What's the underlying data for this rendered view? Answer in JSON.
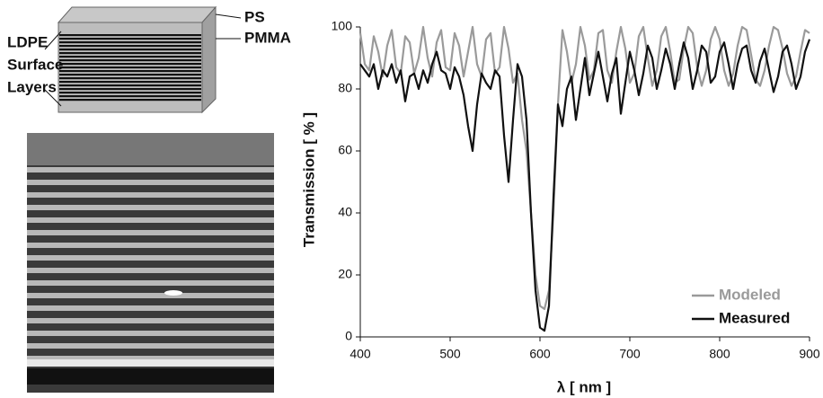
{
  "diagram": {
    "ps_label": "PS",
    "pmma_label": "PMMA",
    "surface_label": [
      "LDPE",
      "Surface",
      "Layers"
    ]
  },
  "chart_data": {
    "type": "line",
    "x_label": "λ [ nm ]",
    "y_label": "Transmission [ % ]",
    "xlim": [
      400,
      900
    ],
    "xticks": [
      400,
      500,
      600,
      700,
      800,
      900
    ],
    "ylim": [
      0,
      100
    ],
    "yticks": [
      0,
      20,
      40,
      60,
      80,
      100
    ],
    "grid": false,
    "legend": "bottom-right",
    "x": [
      400,
      405,
      410,
      415,
      420,
      425,
      430,
      435,
      440,
      445,
      450,
      455,
      460,
      465,
      470,
      475,
      480,
      485,
      490,
      495,
      500,
      505,
      510,
      515,
      520,
      525,
      530,
      535,
      540,
      545,
      550,
      555,
      560,
      565,
      570,
      575,
      580,
      585,
      590,
      595,
      600,
      605,
      610,
      615,
      620,
      625,
      630,
      635,
      640,
      645,
      650,
      655,
      660,
      665,
      670,
      675,
      680,
      685,
      690,
      695,
      700,
      705,
      710,
      715,
      720,
      725,
      730,
      735,
      740,
      745,
      750,
      755,
      760,
      765,
      770,
      775,
      780,
      785,
      790,
      795,
      800,
      805,
      810,
      815,
      820,
      825,
      830,
      835,
      840,
      845,
      850,
      855,
      860,
      865,
      870,
      875,
      880,
      885,
      890,
      895,
      900
    ],
    "series": [
      {
        "name": "Modeled",
        "color": "#9a9a9a",
        "values": [
          98,
          88,
          86,
          97,
          92,
          84,
          94,
          99,
          87,
          85,
          97,
          95,
          85,
          90,
          100,
          90,
          84,
          95,
          99,
          87,
          86,
          98,
          94,
          84,
          92,
          100,
          88,
          84,
          96,
          98,
          85,
          87,
          100,
          93,
          82,
          85,
          70,
          60,
          40,
          20,
          10,
          9,
          15,
          40,
          75,
          99,
          92,
          82,
          88,
          100,
          94,
          83,
          86,
          98,
          99,
          86,
          82,
          92,
          100,
          93,
          82,
          85,
          97,
          100,
          90,
          81,
          86,
          97,
          100,
          92,
          82,
          83,
          93,
          100,
          98,
          87,
          81,
          86,
          96,
          100,
          96,
          86,
          81,
          85,
          94,
          100,
          99,
          91,
          83,
          81,
          86,
          94,
          100,
          99,
          93,
          85,
          81,
          84,
          92,
          99,
          98
        ]
      },
      {
        "name": "Measured",
        "color": "#111111",
        "values": [
          88,
          86,
          84,
          88,
          80,
          86,
          84,
          88,
          82,
          86,
          76,
          84,
          85,
          80,
          86,
          82,
          88,
          92,
          86,
          85,
          80,
          87,
          84,
          78,
          68,
          60,
          75,
          85,
          82,
          80,
          86,
          84,
          65,
          50,
          70,
          88,
          84,
          70,
          40,
          15,
          3,
          2,
          10,
          45,
          75,
          68,
          80,
          84,
          70,
          80,
          90,
          78,
          85,
          92,
          84,
          76,
          85,
          90,
          72,
          82,
          92,
          86,
          78,
          85,
          94,
          90,
          80,
          86,
          93,
          88,
          80,
          88,
          95,
          90,
          80,
          86,
          94,
          92,
          82,
          84,
          92,
          95,
          88,
          80,
          88,
          93,
          94,
          86,
          82,
          89,
          93,
          86,
          79,
          84,
          92,
          94,
          88,
          80,
          84,
          92,
          96
        ]
      }
    ]
  }
}
